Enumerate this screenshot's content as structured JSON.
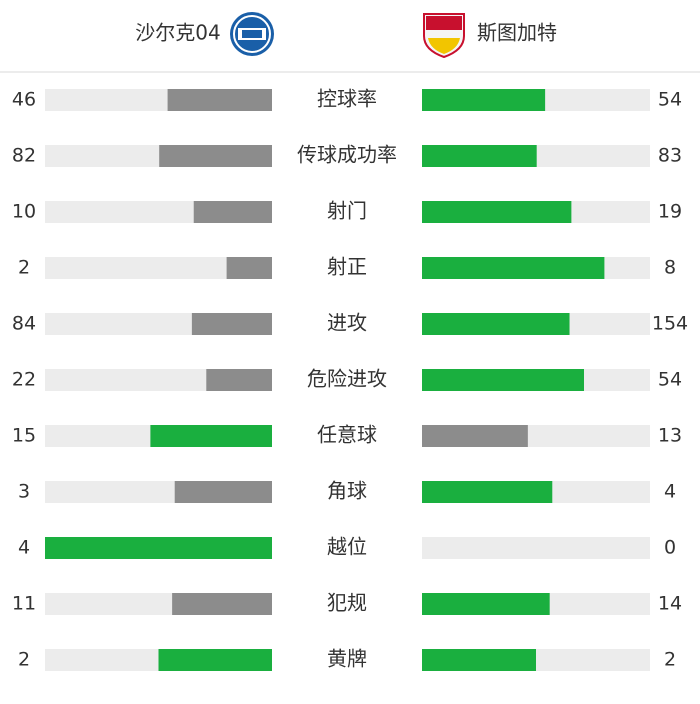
{
  "teams": [
    {
      "name": "沙尔克04"
    },
    {
      "name": "斯图加特"
    }
  ],
  "stats": [
    {
      "label": "控球率",
      "home": 46,
      "away": 54
    },
    {
      "label": "传球成功率",
      "home": 82,
      "away": 83
    },
    {
      "label": "射门",
      "home": 10,
      "away": 19
    },
    {
      "label": "射正",
      "home": 2,
      "away": 8
    },
    {
      "label": "进攻",
      "home": 84,
      "away": 154
    },
    {
      "label": "危险进攻",
      "home": 22,
      "away": 54
    },
    {
      "label": "任意球",
      "home": 15,
      "away": 13
    },
    {
      "label": "角球",
      "home": 3,
      "away": 4
    },
    {
      "label": "越位",
      "home": 4,
      "away": 0
    },
    {
      "label": "犯规",
      "home": 11,
      "away": 14
    },
    {
      "label": "黄牌",
      "home": 2,
      "away": 2
    }
  ]
}
